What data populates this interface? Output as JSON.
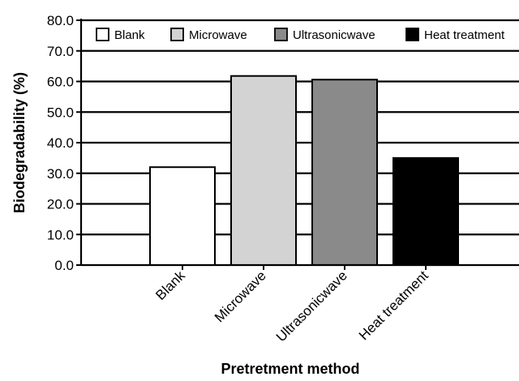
{
  "chart_data": {
    "type": "bar",
    "categories": [
      "Blank",
      "Microwave",
      "Ultrasonicwave",
      "Heat treatment"
    ],
    "series": [
      {
        "values": [
          32.0,
          61.8,
          60.6,
          35.0
        ],
        "colors": [
          "#ffffff",
          "#d3d3d3",
          "#8a8a8a",
          "#000000"
        ]
      }
    ],
    "xlabel": "Pretretment method",
    "ylabel": "Biodegradability (%)",
    "ylim": [
      0,
      80
    ],
    "yticks": [
      "0.0",
      "10.0",
      "20.0",
      "30.0",
      "40.0",
      "50.0",
      "60.0",
      "70.0",
      "80.0"
    ],
    "grid": "horizontal",
    "legend": {
      "placement": "top",
      "entries": [
        {
          "label": "Blank",
          "color": "#ffffff"
        },
        {
          "label": "Microwave",
          "color": "#d3d3d3"
        },
        {
          "label": "Ultrasonicwave",
          "color": "#8a8a8a"
        },
        {
          "label": "Heat treatment",
          "color": "#000000"
        }
      ]
    }
  }
}
